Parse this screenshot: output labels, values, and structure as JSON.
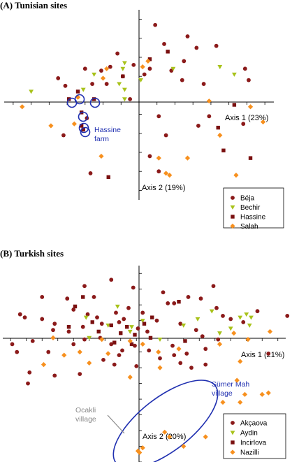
{
  "colors": {
    "series1": "#8b1a1a",
    "series2": "#a8c21a",
    "series3": "#7a1010",
    "series4": "#f7901e",
    "highlight": "#1f2fb0",
    "ocakli": "#8a8a8a"
  },
  "chart_data": [
    {
      "type": "scatter",
      "title": "(A) Tunisian sites",
      "xlabel": "Axis 1 (23%)",
      "ylabel": "Axis 2 (19%)",
      "xlim": [
        -7.5,
        7.5
      ],
      "ylim": [
        -5.5,
        4.5
      ],
      "grid": false,
      "legend_position": "bottom-right",
      "annotations": [
        {
          "text": [
            "Hassine",
            "farm"
          ]
        }
      ],
      "series": [
        {
          "name": "Béja",
          "marker": "circle",
          "color": "#8b1a1a",
          "points": [
            [
              0.9,
              3.7
            ],
            [
              2.5,
              1.8
            ],
            [
              4.3,
              2.6
            ],
            [
              1.4,
              2.7
            ],
            [
              -1.2,
              2.2
            ],
            [
              -0.3,
              1.6
            ],
            [
              2.7,
              3.1
            ],
            [
              3.2,
              2.5
            ],
            [
              -3.0,
              1.4
            ],
            [
              -2.1,
              1.3
            ],
            [
              -1.6,
              1.5
            ],
            [
              0.3,
              1.1
            ],
            [
              0.6,
              1.4
            ],
            [
              -0.9,
              1.0
            ],
            [
              -2.6,
              0.6
            ],
            [
              -4.1,
              0.5
            ],
            [
              -1.8,
              0.6
            ],
            [
              1.8,
              1.3
            ],
            [
              2.4,
              0.8
            ],
            [
              3.6,
              0.6
            ],
            [
              5.9,
              1.4
            ],
            [
              6.1,
              0.8
            ],
            [
              -4.5,
              0.9
            ],
            [
              -0.5,
              -0.2
            ],
            [
              3.9,
              -1.1
            ],
            [
              3.3,
              -1.6
            ],
            [
              5.8,
              -1.5
            ],
            [
              1.1,
              -1.1
            ],
            [
              -4.2,
              -2.1
            ],
            [
              -2.9,
              -1.2
            ],
            [
              1.5,
              -2.1
            ],
            [
              0.6,
              -3.2
            ],
            [
              -2.7,
              -4.1
            ],
            [
              1.1,
              -4.0
            ]
          ]
        },
        {
          "name": "Bechir",
          "marker": "triangle",
          "color": "#a8c21a",
          "points": [
            [
              -6.0,
              0.2
            ],
            [
              -1.1,
              0.6
            ],
            [
              -0.8,
              0.3
            ],
            [
              -3.1,
              0.3
            ],
            [
              -0.8,
              -0.2
            ],
            [
              0.1,
              0.8
            ],
            [
              -2.5,
              1.1
            ],
            [
              -0.8,
              1.7
            ],
            [
              1.9,
              1.4
            ],
            [
              4.5,
              1.5
            ],
            [
              5.3,
              1.1
            ],
            [
              -0.9,
              1.4
            ]
          ]
        },
        {
          "name": "Hassine",
          "marker": "square",
          "color": "#7a1010",
          "points": [
            [
              -3.9,
              -0.2
            ],
            [
              -3.4,
              0.2
            ],
            [
              -2.5,
              -0.2
            ],
            [
              -3.2,
              -0.9
            ],
            [
              -3.2,
              -1.6
            ],
            [
              -3.1,
              -1.8
            ],
            [
              -0.9,
              1.0
            ],
            [
              1.6,
              2.3
            ],
            [
              0.6,
              1.9
            ],
            [
              4.4,
              -1.7
            ],
            [
              5.3,
              -0.5
            ],
            [
              4.7,
              -2.9
            ],
            [
              6.2,
              -3.3
            ],
            [
              -1.7,
              -4.3
            ]
          ]
        },
        {
          "name": "Salah",
          "marker": "diamond",
          "color": "#f7901e",
          "points": [
            [
              -6.5,
              -0.6
            ],
            [
              -4.9,
              -1.6
            ],
            [
              -3.6,
              -1.5
            ],
            [
              -2.0,
              0.9
            ],
            [
              -1.8,
              1.4
            ],
            [
              0.2,
              1.5
            ],
            [
              0.5,
              1.8
            ],
            [
              3.9,
              -0.3
            ],
            [
              6.2,
              -0.6
            ],
            [
              6.9,
              -1.4
            ],
            [
              4.5,
              -2.1
            ],
            [
              2.7,
              -3.3
            ],
            [
              1.1,
              -3.3
            ],
            [
              1.5,
              -4.1
            ],
            [
              1.7,
              -4.2
            ],
            [
              5.4,
              -4.2
            ],
            [
              -2.1,
              -3.2
            ],
            [
              -3.4,
              -0.1
            ]
          ]
        }
      ]
    },
    {
      "type": "scatter",
      "title": "(B) Turkish sites",
      "xlabel": "Axis 1 (21%)",
      "ylabel": "Axis 2 (20%)",
      "xlim": [
        -9.5,
        8.5
      ],
      "ylim": [
        -8.0,
        4.5
      ],
      "grid": false,
      "legend_position": "bottom-right",
      "annotations": [
        {
          "text": [
            "Sümer Mah",
            "village"
          ]
        },
        {
          "text": [
            "Ocakli",
            "village"
          ]
        }
      ],
      "series": [
        {
          "name": "Akçaova",
          "marker": "circle",
          "color": "#8b1a1a",
          "points": [
            [
              -2.6,
              3.6
            ],
            [
              -4.3,
              3.2
            ],
            [
              -1.2,
              3.1
            ],
            [
              -7.0,
              2.5
            ],
            [
              -5.4,
              2.4
            ],
            [
              -3.7,
              2.5
            ],
            [
              0.7,
              2.8
            ],
            [
              1.0,
              2.1
            ],
            [
              1.4,
              2.1
            ],
            [
              2.3,
              2.5
            ],
            [
              3.1,
              2.4
            ],
            [
              3.9,
              3.2
            ],
            [
              4.1,
              1.8
            ],
            [
              4.5,
              1.3
            ],
            [
              5.0,
              1.1
            ],
            [
              5.8,
              0.9
            ],
            [
              6.7,
              1.6
            ],
            [
              8.6,
              1.3
            ],
            [
              -8.4,
              1.4
            ],
            [
              -8.1,
              1.2
            ],
            [
              -7.0,
              1.1
            ],
            [
              -6.2,
              0.8
            ],
            [
              -5.0,
              1.7
            ],
            [
              -4.1,
              1.4
            ],
            [
              -3.5,
              1.2
            ],
            [
              -2.3,
              1.5
            ],
            [
              -1.5,
              1.8
            ],
            [
              -1.8,
              1.1
            ],
            [
              -0.6,
              1.5
            ],
            [
              0.3,
              1.0
            ],
            [
              -6.3,
              0.4
            ],
            [
              -5.3,
              0.3
            ],
            [
              -4.4,
              0.6
            ],
            [
              -3.2,
              0.8
            ],
            [
              -2.1,
              0.9
            ],
            [
              -0.9,
              0.5
            ],
            [
              -0.3,
              0.3
            ],
            [
              1.8,
              0.8
            ],
            [
              2.8,
              0.4
            ],
            [
              3.2,
              0.0
            ],
            [
              -7.6,
              -0.3
            ],
            [
              -8.9,
              -0.5
            ],
            [
              -8.6,
              -1.0
            ],
            [
              -6.6,
              -1.0
            ],
            [
              -5.0,
              -0.5
            ],
            [
              -4.3,
              -0.2
            ],
            [
              -3.3,
              -0.1
            ],
            [
              -2.6,
              -0.5
            ],
            [
              -1.9,
              -0.9
            ],
            [
              -1.1,
              -0.6
            ],
            [
              -0.2,
              -0.9
            ],
            [
              1.3,
              -0.6
            ],
            [
              2.2,
              -1.1
            ],
            [
              3.4,
              -0.8
            ],
            [
              4.2,
              -0.2
            ],
            [
              -7.8,
              -2.3
            ],
            [
              -7.9,
              -3.0
            ],
            [
              -6.2,
              -2.5
            ],
            [
              -4.6,
              -2.4
            ],
            [
              -3.1,
              -1.5
            ],
            [
              -2.4,
              -1.8
            ],
            [
              -1.0,
              -1.9
            ],
            [
              0.5,
              -1.4
            ],
            [
              1.8,
              -1.7
            ],
            [
              2.5,
              -2.0
            ],
            [
              3.4,
              -1.8
            ],
            [
              7.4,
              -1.1
            ],
            [
              -2.1,
              -1.2
            ],
            [
              1.4,
              -1.2
            ]
          ]
        },
        {
          "name": "Aydin",
          "marker": "triangle",
          "color": "#a8c21a",
          "points": [
            [
              -4.2,
              1.2
            ],
            [
              -2.2,
              1.9
            ],
            [
              -1.3,
              0.6
            ],
            [
              -0.6,
              1.0
            ],
            [
              0.5,
              -0.2
            ],
            [
              2.0,
              0.7
            ],
            [
              2.9,
              1.1
            ],
            [
              4.3,
              0.2
            ],
            [
              5.0,
              0.5
            ],
            [
              5.6,
              1.2
            ],
            [
              6.0,
              1.4
            ],
            [
              6.3,
              1.2
            ],
            [
              6.2,
              0.7
            ],
            [
              -4.0,
              -0.1
            ],
            [
              -2.8,
              0.7
            ],
            [
              -1.4,
              0.3
            ],
            [
              3.8,
              1.6
            ]
          ]
        },
        {
          "name": "Incirlova",
          "marker": "square",
          "color": "#7a1010",
          "points": [
            [
              -4.9,
              1.9
            ],
            [
              -3.8,
              0.9
            ],
            [
              -3.4,
              0.3
            ],
            [
              -2.6,
              0.7
            ],
            [
              -2.0,
              0.2
            ],
            [
              -1.6,
              0.6
            ],
            [
              -1.1,
              0.1
            ],
            [
              -0.5,
              0.8
            ],
            [
              0.0,
              1.2
            ],
            [
              -2.4,
              -0.4
            ],
            [
              -1.3,
              -0.5
            ],
            [
              -0.1,
              -0.1
            ],
            [
              2.1,
              -0.3
            ],
            [
              -5.3,
              0.6
            ],
            [
              1.7,
              2.2
            ],
            [
              -4.4,
              2.5
            ]
          ]
        },
        {
          "name": "Nazilli",
          "marker": "diamond",
          "color": "#f7901e",
          "points": [
            [
              -6.3,
              -0.1
            ],
            [
              -5.6,
              -1.2
            ],
            [
              -4.6,
              -1.0
            ],
            [
              -4.0,
              -1.7
            ],
            [
              -6.9,
              -1.8
            ],
            [
              -3.2,
              -0.2
            ],
            [
              -2.8,
              -1.1
            ],
            [
              -1.4,
              -0.3
            ],
            [
              -0.6,
              -0.5
            ],
            [
              0.4,
              -1.0
            ],
            [
              1.7,
              -0.8
            ],
            [
              4.3,
              -0.5
            ],
            [
              5.2,
              0.2
            ],
            [
              5.6,
              -1.6
            ],
            [
              6.1,
              -0.2
            ],
            [
              -1.4,
              -2.6
            ],
            [
              0.5,
              -2.0
            ],
            [
              7.5,
              0.3
            ],
            [
              -0.9,
              -7.3
            ],
            [
              -0.6,
              -7.1
            ],
            [
              -0.8,
              -7.4
            ],
            [
              0.8,
              -6.1
            ],
            [
              1.1,
              -6.4
            ],
            [
              2.0,
              -7.0
            ],
            [
              3.4,
              -6.4
            ],
            [
              5.6,
              -4.2
            ],
            [
              5.9,
              -3.7
            ],
            [
              4.5,
              -4.2
            ],
            [
              7.0,
              -3.7
            ],
            [
              7.4,
              -3.6
            ],
            [
              5.4,
              -2.8
            ]
          ]
        }
      ]
    }
  ]
}
